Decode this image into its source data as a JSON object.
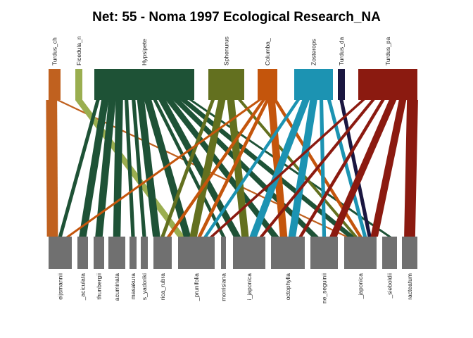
{
  "title": "Net: 55 - Noma 1997 Ecological Research_NA",
  "colors": {
    "background": "#ffffff",
    "lower_box": "#707070"
  },
  "chart_data": {
    "type": "bipartite-network",
    "title": "Net: 55 - Noma 1997 Ecological Research_NA",
    "higher_level": [
      {
        "label": "Turdus_ch",
        "color": "#C0611F"
      },
      {
        "label": "Ficedula_n",
        "color": "#9AAE50"
      },
      {
        "label": "Hypsipete",
        "color": "#1E5236"
      },
      {
        "label": "Sphenurus",
        "color": "#63701F"
      },
      {
        "label": "Columba_",
        "color": "#C4550C"
      },
      {
        "label": "Zosterops",
        "color": "#1C93B2"
      },
      {
        "label": "Turdus_da",
        "color": "#1A1640"
      },
      {
        "label": "Turdus_pa",
        "color": "#8B1A10"
      }
    ],
    "lower_level": [
      {
        "label": "eijsmannii"
      },
      {
        "label": "_aciculata"
      },
      {
        "label": "thunbergii"
      },
      {
        "label": "acuminata"
      },
      {
        "label": "masakura"
      },
      {
        "label": "s_yadoriki"
      },
      {
        "label": "rica_rubra"
      },
      {
        "label": "_prunifolia"
      },
      {
        "label": "morrisiana"
      },
      {
        "label": "i_japonica"
      },
      {
        "label": "octophylla"
      },
      {
        "label": "ne_seguinii"
      },
      {
        "label": "_japonica"
      },
      {
        "label": "_sieboldii"
      },
      {
        "label": "racteatum"
      }
    ],
    "links": [
      {
        "from": 0,
        "to": 0,
        "weight": 3
      },
      {
        "from": 0,
        "to": 12,
        "weight": 1
      },
      {
        "from": 1,
        "to": 7,
        "weight": 2
      },
      {
        "from": 2,
        "to": 0,
        "weight": 1
      },
      {
        "from": 2,
        "to": 1,
        "weight": 2
      },
      {
        "from": 2,
        "to": 2,
        "weight": 2
      },
      {
        "from": 2,
        "to": 3,
        "weight": 2
      },
      {
        "from": 2,
        "to": 4,
        "weight": 1
      },
      {
        "from": 2,
        "to": 5,
        "weight": 1
      },
      {
        "from": 2,
        "to": 6,
        "weight": 2
      },
      {
        "from": 2,
        "to": 7,
        "weight": 2
      },
      {
        "from": 2,
        "to": 8,
        "weight": 1
      },
      {
        "from": 2,
        "to": 9,
        "weight": 2
      },
      {
        "from": 2,
        "to": 10,
        "weight": 2
      },
      {
        "from": 2,
        "to": 11,
        "weight": 2
      },
      {
        "from": 2,
        "to": 12,
        "weight": 2
      },
      {
        "from": 2,
        "to": 13,
        "weight": 1
      },
      {
        "from": 3,
        "to": 6,
        "weight": 1
      },
      {
        "from": 3,
        "to": 7,
        "weight": 2
      },
      {
        "from": 3,
        "to": 9,
        "weight": 2
      },
      {
        "from": 3,
        "to": 12,
        "weight": 1
      },
      {
        "from": 4,
        "to": 0,
        "weight": 1
      },
      {
        "from": 4,
        "to": 6,
        "weight": 1
      },
      {
        "from": 4,
        "to": 7,
        "weight": 1
      },
      {
        "from": 4,
        "to": 10,
        "weight": 2
      },
      {
        "from": 4,
        "to": 12,
        "weight": 1
      },
      {
        "from": 5,
        "to": 7,
        "weight": 1
      },
      {
        "from": 5,
        "to": 9,
        "weight": 2
      },
      {
        "from": 5,
        "to": 10,
        "weight": 2
      },
      {
        "from": 5,
        "to": 11,
        "weight": 1
      },
      {
        "from": 5,
        "to": 12,
        "weight": 1
      },
      {
        "from": 6,
        "to": 12,
        "weight": 1
      },
      {
        "from": 7,
        "to": 7,
        "weight": 1
      },
      {
        "from": 7,
        "to": 9,
        "weight": 1
      },
      {
        "from": 7,
        "to": 10,
        "weight": 1
      },
      {
        "from": 7,
        "to": 11,
        "weight": 2
      },
      {
        "from": 7,
        "to": 12,
        "weight": 2
      },
      {
        "from": 7,
        "to": 14,
        "weight": 3
      }
    ]
  }
}
